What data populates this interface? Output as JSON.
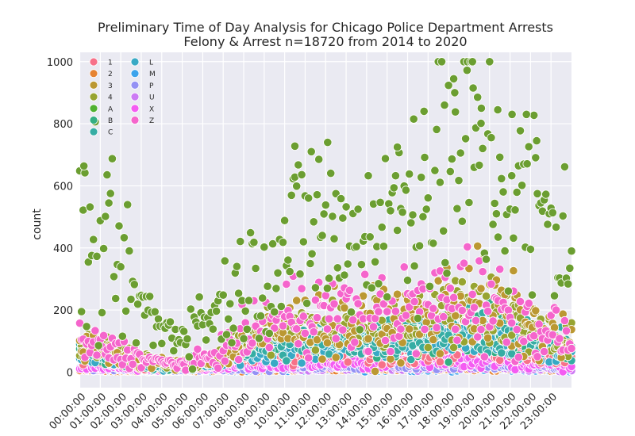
{
  "chart_data": {
    "type": "scatter",
    "title": "Preliminary Time of Day Analysis for Chicago Police Department Arrests",
    "subtitle": "Felony & Arrest n=18720 from 2014 to 2020",
    "xlabel": "",
    "ylabel": "count",
    "ylim": [
      -50,
      1030
    ],
    "yticks": [
      0,
      200,
      400,
      600,
      800,
      1000
    ],
    "xlim": [
      -0.02,
      24.0
    ],
    "xticks": [
      "00:00:00",
      "01:00:00",
      "02:00:00",
      "03:00:00",
      "04:00:00",
      "05:00:00",
      "06:00:00",
      "07:00:00",
      "08:00:00",
      "09:00:00",
      "10:00:00",
      "11:00:00",
      "12:00:00",
      "13:00:00",
      "14:00:00",
      "15:00:00",
      "16:00:00",
      "17:00:00",
      "18:00:00",
      "19:00:00",
      "20:00:00",
      "21:00:00",
      "22:00:00",
      "23:00:00"
    ],
    "grid": true,
    "legend_position": "top-left",
    "background": "#eaeaf2",
    "legend": [
      {
        "label": "1",
        "color": "#f77189"
      },
      {
        "label": "2",
        "color": "#e68332"
      },
      {
        "label": "3",
        "color": "#bb9832"
      },
      {
        "label": "4",
        "color": "#97a431"
      },
      {
        "label": "A",
        "color": "#50b131"
      },
      {
        "label": "B",
        "color": "#34af84"
      },
      {
        "label": "C",
        "color": "#36ada4"
      },
      {
        "label": "L",
        "color": "#38a9c5"
      },
      {
        "label": "M",
        "color": "#3ba3ec"
      },
      {
        "label": "P",
        "color": "#9491f4"
      },
      {
        "label": "U",
        "color": "#cc7af4"
      },
      {
        "label": "X",
        "color": "#f45cf2"
      },
      {
        "label": "Z",
        "color": "#f565cc"
      }
    ],
    "series": [
      {
        "name": "A",
        "color": "#6b9e31",
        "profile": [
          [
            0,
            440
          ],
          [
            0.5,
            400
          ],
          [
            1,
            430
          ],
          [
            1.5,
            370
          ],
          [
            2,
            320
          ],
          [
            2.5,
            260
          ],
          [
            3,
            210
          ],
          [
            3.5,
            170
          ],
          [
            4,
            140
          ],
          [
            4.5,
            125
          ],
          [
            5,
            130
          ],
          [
            5.5,
            145
          ],
          [
            6,
            165
          ],
          [
            6.5,
            190
          ],
          [
            7,
            220
          ],
          [
            7.5,
            250
          ],
          [
            8,
            280
          ],
          [
            8.5,
            310
          ],
          [
            9,
            330
          ],
          [
            9.5,
            350
          ],
          [
            10,
            380
          ],
          [
            10.5,
            420
          ],
          [
            11,
            450
          ],
          [
            11.5,
            470
          ],
          [
            12,
            460
          ],
          [
            12.5,
            430
          ],
          [
            13,
            410
          ],
          [
            13.5,
            420
          ],
          [
            14,
            440
          ],
          [
            14.5,
            470
          ],
          [
            15,
            500
          ],
          [
            15.5,
            520
          ],
          [
            16,
            540
          ],
          [
            16.5,
            560
          ],
          [
            17,
            590
          ],
          [
            17.5,
            630
          ],
          [
            18,
            670
          ],
          [
            18.5,
            700
          ],
          [
            19,
            720
          ],
          [
            19.5,
            700
          ],
          [
            20,
            670
          ],
          [
            20.5,
            620
          ],
          [
            21,
            580
          ],
          [
            21.5,
            540
          ],
          [
            22,
            520
          ],
          [
            22.5,
            500
          ],
          [
            23,
            470
          ],
          [
            24,
            440
          ]
        ],
        "spread": 0.35,
        "peaks": [
          [
            0.2,
            664
          ],
          [
            10.5,
            728
          ],
          [
            11.3,
            710
          ],
          [
            12.1,
            740
          ],
          [
            16.8,
            840
          ],
          [
            17.8,
            860
          ],
          [
            18.3,
            900
          ],
          [
            18.9,
            972
          ],
          [
            19.2,
            915
          ],
          [
            19.6,
            850
          ],
          [
            20.4,
            845
          ],
          [
            21.1,
            830
          ],
          [
            21.8,
            830
          ],
          [
            22.3,
            745
          ],
          [
            16.3,
            815
          ],
          [
            15.5,
            725
          ]
        ]
      },
      {
        "name": "Z",
        "color": "#f565cc",
        "profile": [
          [
            0,
            90
          ],
          [
            1,
            80
          ],
          [
            2,
            65
          ],
          [
            3,
            45
          ],
          [
            4,
            30
          ],
          [
            5,
            28
          ],
          [
            6,
            40
          ],
          [
            7,
            70
          ],
          [
            8,
            110
          ],
          [
            9,
            150
          ],
          [
            10,
            180
          ],
          [
            11,
            195
          ],
          [
            12,
            190
          ],
          [
            13,
            185
          ],
          [
            14,
            185
          ],
          [
            15,
            190
          ],
          [
            16,
            195
          ],
          [
            17,
            205
          ],
          [
            18,
            230
          ],
          [
            19,
            250
          ],
          [
            20,
            220
          ],
          [
            21,
            190
          ],
          [
            22,
            160
          ],
          [
            23,
            130
          ],
          [
            24,
            100
          ]
        ],
        "spread": 0.35
      },
      {
        "name": "3",
        "color": "#bb9832",
        "profile": [
          [
            0,
            80
          ],
          [
            1,
            70
          ],
          [
            2,
            55
          ],
          [
            3,
            40
          ],
          [
            4,
            28
          ],
          [
            5,
            25
          ],
          [
            6,
            35
          ],
          [
            7,
            55
          ],
          [
            8,
            85
          ],
          [
            9,
            115
          ],
          [
            10,
            140
          ],
          [
            11,
            155
          ],
          [
            12,
            150
          ],
          [
            13,
            145
          ],
          [
            14,
            150
          ],
          [
            15,
            160
          ],
          [
            16,
            165
          ],
          [
            17,
            180
          ],
          [
            18,
            210
          ],
          [
            19,
            240
          ],
          [
            20,
            210
          ],
          [
            21,
            180
          ],
          [
            22,
            150
          ],
          [
            23,
            120
          ],
          [
            24,
            95
          ]
        ],
        "spread": 0.35
      },
      {
        "name": "4",
        "color": "#97a431",
        "profile": [
          [
            0,
            85
          ],
          [
            1,
            75
          ],
          [
            2,
            60
          ],
          [
            3,
            42
          ],
          [
            4,
            30
          ],
          [
            5,
            26
          ],
          [
            6,
            36
          ],
          [
            7,
            60
          ],
          [
            8,
            90
          ],
          [
            9,
            120
          ],
          [
            10,
            140
          ],
          [
            11,
            150
          ],
          [
            12,
            145
          ],
          [
            13,
            140
          ],
          [
            14,
            145
          ],
          [
            15,
            150
          ],
          [
            16,
            160
          ],
          [
            17,
            175
          ],
          [
            18,
            200
          ],
          [
            19,
            220
          ],
          [
            20,
            200
          ],
          [
            21,
            175
          ],
          [
            22,
            150
          ],
          [
            23,
            120
          ],
          [
            24,
            95
          ]
        ],
        "spread": 0.3
      },
      {
        "name": "C",
        "color": "#36ada4",
        "profile": [
          [
            0,
            70
          ],
          [
            2,
            50
          ],
          [
            4,
            25
          ],
          [
            6,
            30
          ],
          [
            8,
            70
          ],
          [
            10,
            100
          ],
          [
            12,
            105
          ],
          [
            14,
            105
          ],
          [
            16,
            115
          ],
          [
            18,
            140
          ],
          [
            19,
            160
          ],
          [
            20,
            140
          ],
          [
            22,
            110
          ],
          [
            24,
            80
          ]
        ],
        "spread": 0.3
      },
      {
        "name": "L",
        "color": "#38a9c5",
        "profile": [
          [
            0,
            55
          ],
          [
            2,
            40
          ],
          [
            4,
            20
          ],
          [
            6,
            25
          ],
          [
            8,
            55
          ],
          [
            10,
            80
          ],
          [
            12,
            85
          ],
          [
            14,
            85
          ],
          [
            16,
            95
          ],
          [
            18,
            115
          ],
          [
            19,
            130
          ],
          [
            20,
            115
          ],
          [
            22,
            90
          ],
          [
            24,
            65
          ]
        ],
        "spread": 0.3
      },
      {
        "name": "B",
        "color": "#34af84",
        "profile": [
          [
            0,
            60
          ],
          [
            2,
            45
          ],
          [
            4,
            22
          ],
          [
            6,
            28
          ],
          [
            8,
            60
          ],
          [
            10,
            90
          ],
          [
            12,
            95
          ],
          [
            14,
            95
          ],
          [
            16,
            105
          ],
          [
            18,
            130
          ],
          [
            19,
            145
          ],
          [
            20,
            125
          ],
          [
            22,
            100
          ],
          [
            24,
            70
          ]
        ],
        "spread": 0.3
      },
      {
        "name": "1",
        "color": "#f77189",
        "profile": [
          [
            0,
            40
          ],
          [
            2,
            30
          ],
          [
            4,
            15
          ],
          [
            6,
            18
          ],
          [
            8,
            40
          ],
          [
            10,
            60
          ],
          [
            12,
            65
          ],
          [
            14,
            65
          ],
          [
            16,
            70
          ],
          [
            18,
            85
          ],
          [
            19,
            95
          ],
          [
            20,
            85
          ],
          [
            22,
            65
          ],
          [
            24,
            45
          ]
        ],
        "spread": 0.3
      },
      {
        "name": "X",
        "color": "#f45cf2",
        "profile": [
          [
            0,
            20
          ],
          [
            4,
            8
          ],
          [
            8,
            20
          ],
          [
            12,
            30
          ],
          [
            16,
            35
          ],
          [
            19,
            45
          ],
          [
            22,
            30
          ],
          [
            24,
            15
          ]
        ],
        "spread": 0.35
      },
      {
        "name": "P",
        "color": "#9491f4",
        "profile": [
          [
            0,
            15
          ],
          [
            4,
            6
          ],
          [
            8,
            15
          ],
          [
            12,
            22
          ],
          [
            16,
            25
          ],
          [
            19,
            30
          ],
          [
            22,
            22
          ],
          [
            24,
            12
          ]
        ],
        "spread": 0.35
      },
      {
        "name": "U",
        "color": "#cc7af4",
        "profile": [
          [
            0,
            10
          ],
          [
            4,
            5
          ],
          [
            8,
            10
          ],
          [
            12,
            14
          ],
          [
            16,
            16
          ],
          [
            19,
            20
          ],
          [
            22,
            14
          ],
          [
            24,
            8
          ]
        ],
        "spread": 0.35
      },
      {
        "name": "2",
        "color": "#e68332",
        "profile": [
          [
            0,
            8
          ],
          [
            4,
            3
          ],
          [
            8,
            8
          ],
          [
            12,
            10
          ],
          [
            16,
            12
          ],
          [
            19,
            14
          ],
          [
            22,
            10
          ],
          [
            24,
            6
          ]
        ],
        "spread": 0.35
      },
      {
        "name": "M",
        "color": "#3ba3ec",
        "profile": [
          [
            0,
            6
          ],
          [
            4,
            2
          ],
          [
            8,
            6
          ],
          [
            12,
            8
          ],
          [
            16,
            9
          ],
          [
            19,
            10
          ],
          [
            22,
            8
          ],
          [
            24,
            5
          ]
        ],
        "spread": 0.35
      }
    ]
  }
}
